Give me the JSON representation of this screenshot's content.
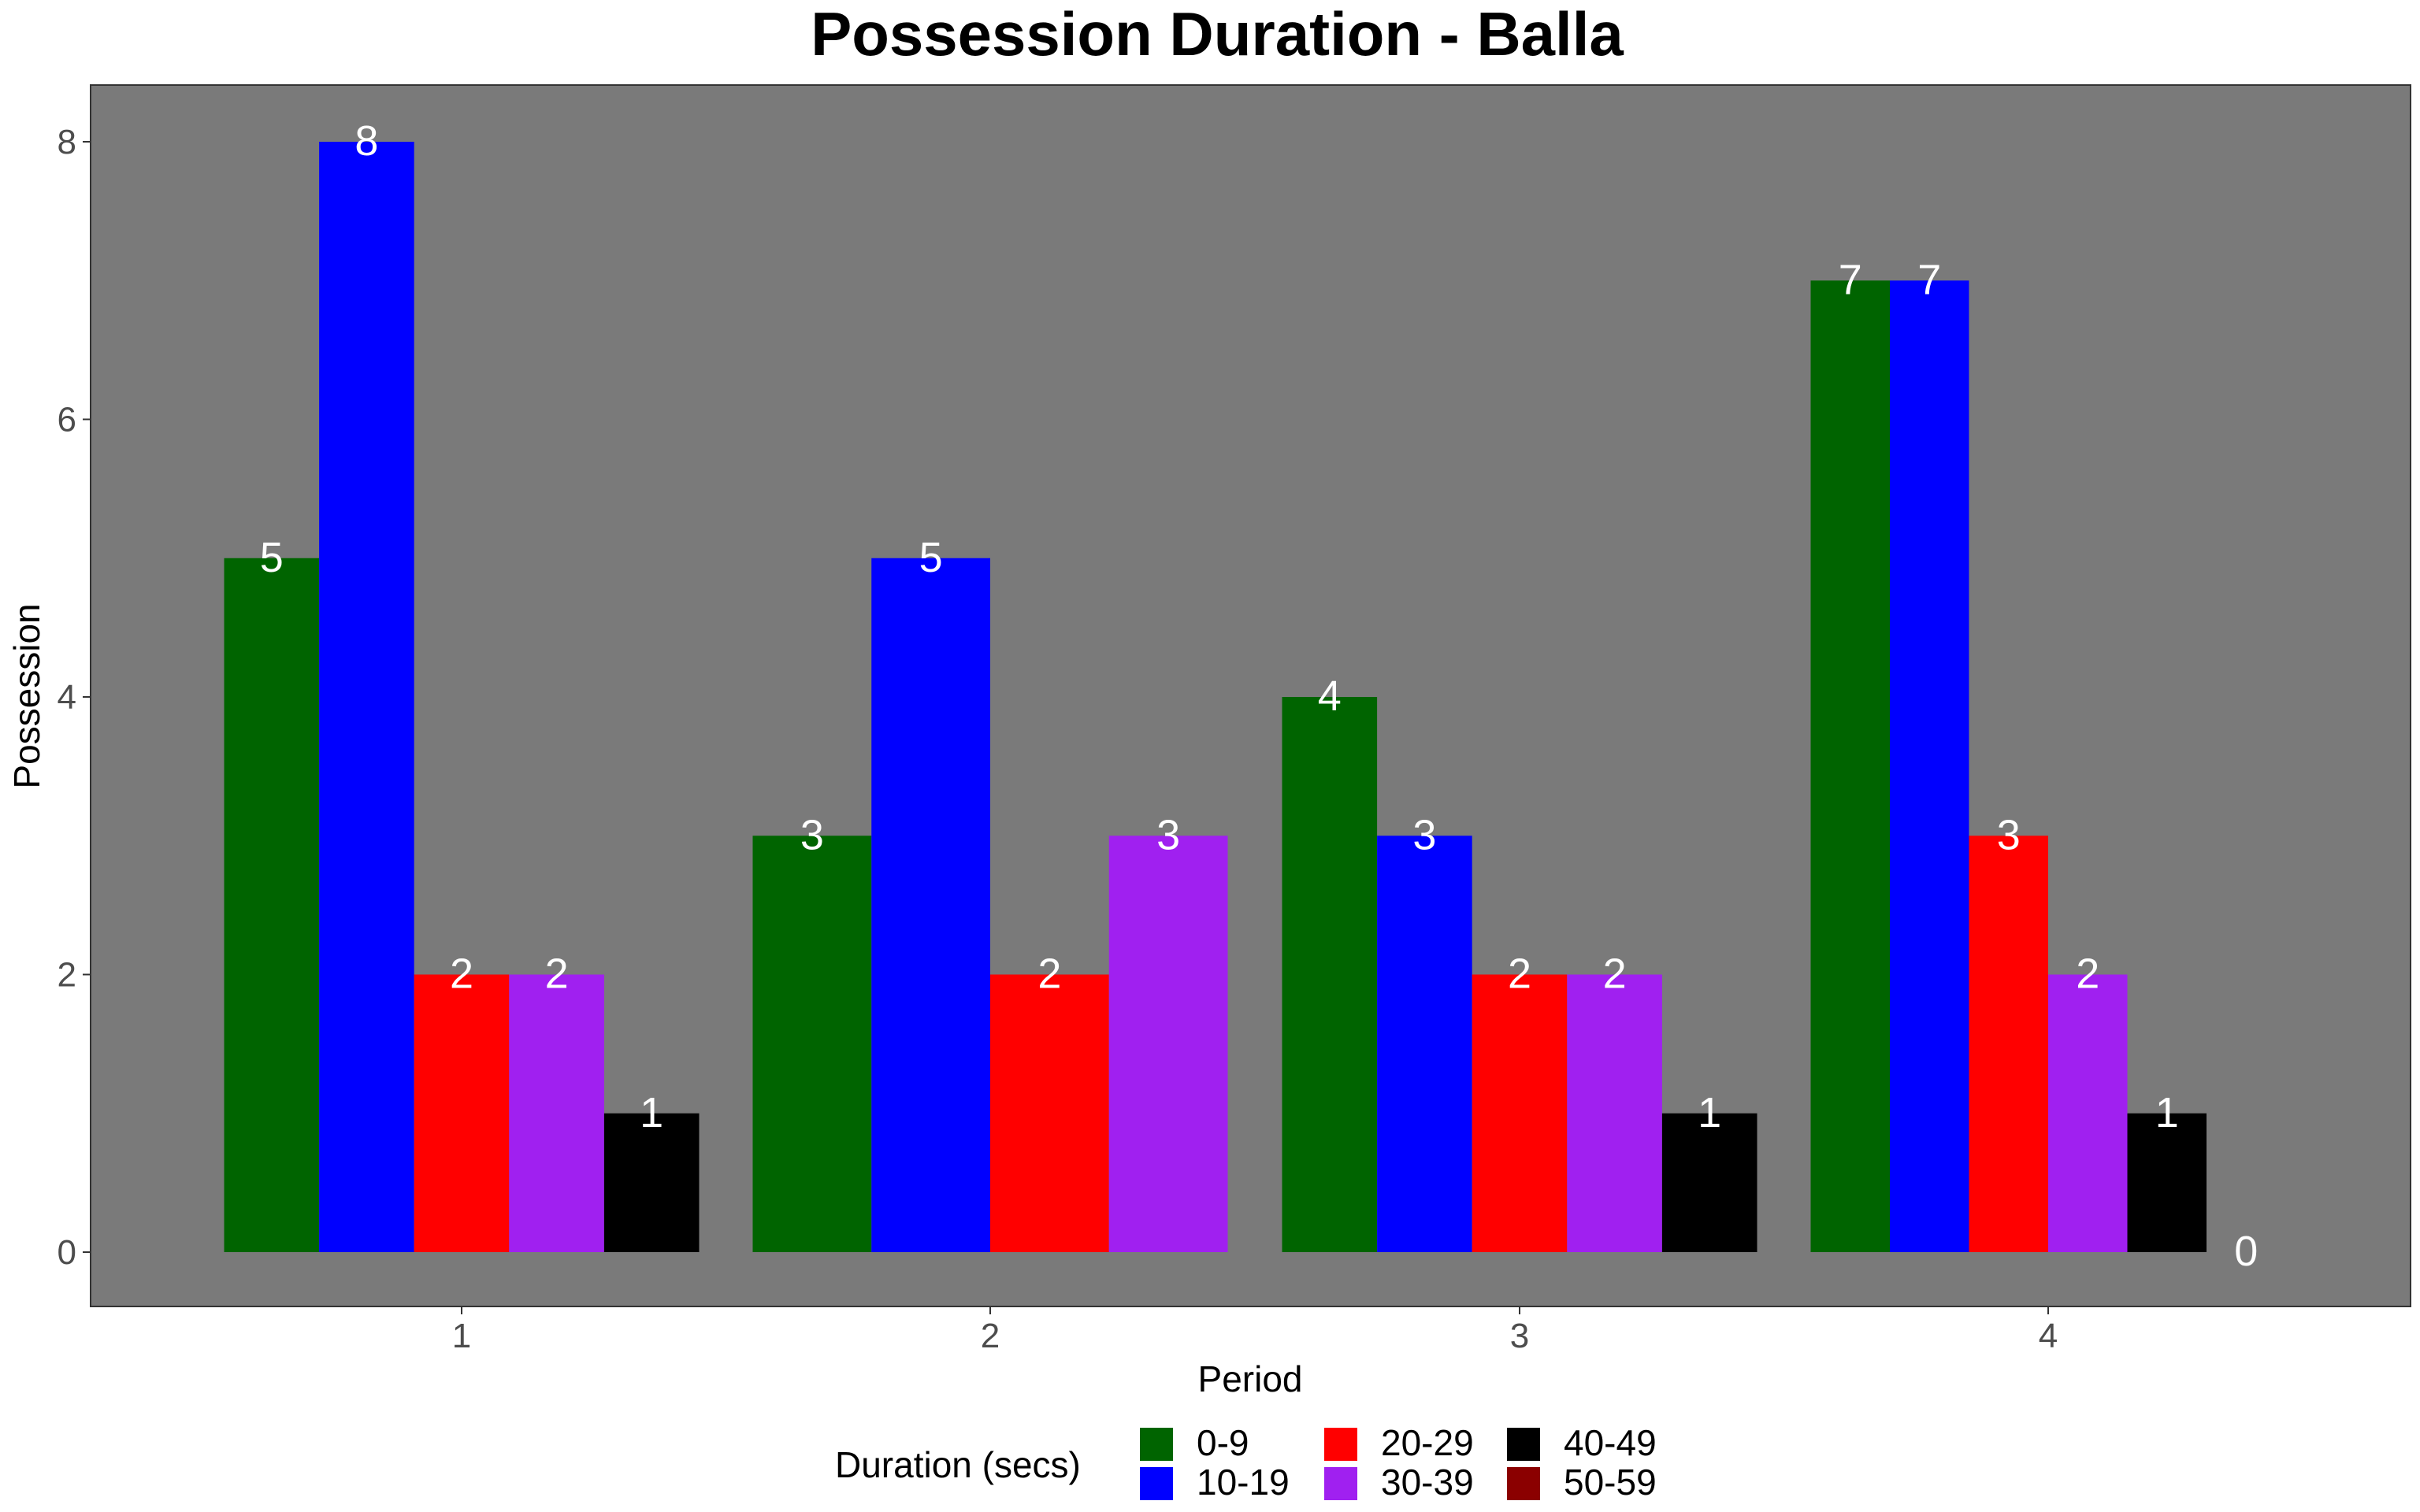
{
  "chart_data": {
    "type": "bar",
    "title": "Possession Duration - Balla",
    "xlabel": "Period",
    "ylabel": "Possession",
    "categories": [
      "1",
      "2",
      "3",
      "4"
    ],
    "ylim": [
      0,
      8.4
    ],
    "yticks": [
      0,
      2,
      4,
      6,
      8
    ],
    "ytick_labels": [
      "0",
      "2",
      "4",
      "6",
      "8"
    ],
    "legend_title": "Duration (secs)",
    "legend_position": "bottom",
    "grid": false,
    "panel_color": "#7a7a7a",
    "series": [
      {
        "name": "0-9",
        "color": "#006400",
        "values": [
          5,
          3,
          4,
          7
        ]
      },
      {
        "name": "10-19",
        "color": "#0000ff",
        "values": [
          8,
          5,
          3,
          7
        ]
      },
      {
        "name": "20-29",
        "color": "#ff0000",
        "values": [
          2,
          2,
          2,
          3
        ]
      },
      {
        "name": "30-39",
        "color": "#a020f0",
        "values": [
          2,
          3,
          2,
          2
        ]
      },
      {
        "name": "40-49",
        "color": "#000000",
        "values": [
          1,
          null,
          1,
          1
        ]
      },
      {
        "name": "50-59",
        "color": "#8b0000",
        "values": [
          null,
          null,
          null,
          0
        ]
      }
    ]
  }
}
